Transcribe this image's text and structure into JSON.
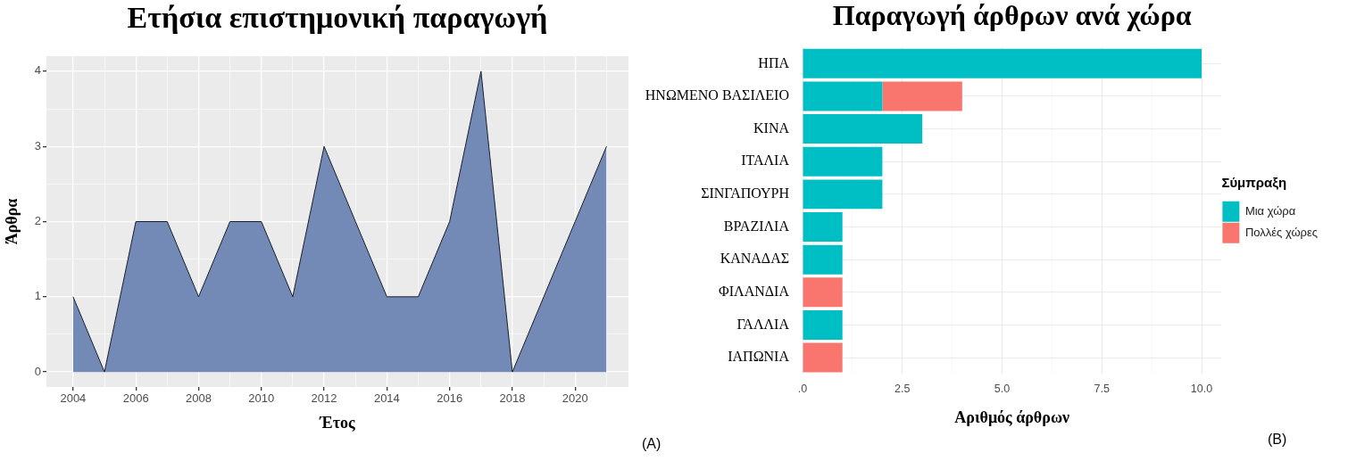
{
  "chart_data": [
    {
      "type": "area",
      "title": "Ετήσια επιστημονική παραγωγή",
      "xlabel": "Έτος",
      "ylabel": "Άρθρα",
      "x": [
        2004,
        2005,
        2006,
        2007,
        2008,
        2009,
        2010,
        2011,
        2012,
        2013,
        2014,
        2015,
        2016,
        2017,
        2018,
        2019,
        2020,
        2021
      ],
      "values": [
        1,
        0,
        2,
        2,
        1,
        2,
        2,
        1,
        3,
        2,
        1,
        1,
        2,
        4,
        0,
        1,
        2,
        3
      ],
      "color": "#7389b6",
      "xlim": [
        2003.15,
        2021.7
      ],
      "ylim": [
        -0.2,
        4.2
      ],
      "xticks": [
        2004,
        {
          "value": 2005,
          "label": null
        },
        2006,
        {
          "value": 2007,
          "label": null
        },
        2008,
        {
          "value": 2009,
          "label": null
        },
        2010,
        {
          "value": 2011,
          "label": null
        },
        2012,
        {
          "value": 2013,
          "label": null
        },
        2014,
        {
          "value": 2015,
          "label": null
        },
        2016,
        {
          "value": 2017,
          "label": null
        },
        2018,
        {
          "value": 2019,
          "label": null
        },
        2020,
        {
          "value": 2021,
          "label": null
        }
      ],
      "yticks": [
        0,
        {
          "value": 0.5,
          "label": null
        },
        1,
        {
          "value": 1.5,
          "label": null
        },
        2,
        {
          "value": 2.5,
          "label": null
        },
        3,
        {
          "value": 3.5,
          "label": null
        },
        4
      ],
      "grid": true,
      "annotations": [
        "(A)"
      ]
    },
    {
      "type": "bar",
      "orientation": "horizontal",
      "stacked": true,
      "title": "Παραγωγή άρθρων ανά χώρα",
      "xlabel": "Αριθμός άρθρων",
      "legend_title": "Σύμπραξη",
      "legend": "right",
      "categories": [
        "ΗΠΑ",
        "ΗΝΩΜΕΝΟ ΒΑΣΙΛΕΙΟ",
        "ΚΙΝΑ",
        "ΙΤΑΛΙΑ",
        "ΣΙΝΓΑΠΟΥΡΗ",
        "ΒΡΑΖΙΛΙΑ",
        "ΚΑΝΑΔΑΣ",
        "ΦΙΛΑΝΔΙΑ",
        "ΓΑΛΛΙΑ",
        "ΙΑΠΩΝΙΑ"
      ],
      "series": [
        {
          "name": "Μια χώρα",
          "color": "#00bfc4",
          "values": [
            10,
            2,
            3,
            2,
            2,
            1,
            1,
            0,
            1,
            0
          ]
        },
        {
          "name": "Πολλές χώρες",
          "color": "#f8766d",
          "values": [
            0,
            2,
            0,
            0,
            0,
            0,
            0,
            1,
            0,
            1
          ]
        }
      ],
      "xlim": [
        0,
        10.5
      ],
      "xticks": [
        {
          "value": 0,
          "label": ".0"
        },
        {
          "value": 1.25,
          "label": null
        },
        2.5,
        {
          "value": 3.75,
          "label": null
        },
        {
          "value": 5,
          "label": "5.0"
        },
        {
          "value": 6.25,
          "label": null
        },
        7.5,
        {
          "value": 8.75,
          "label": null
        },
        {
          "value": 10,
          "label": "10.0"
        }
      ],
      "grid": true,
      "annotations": [
        "(B)"
      ]
    }
  ]
}
